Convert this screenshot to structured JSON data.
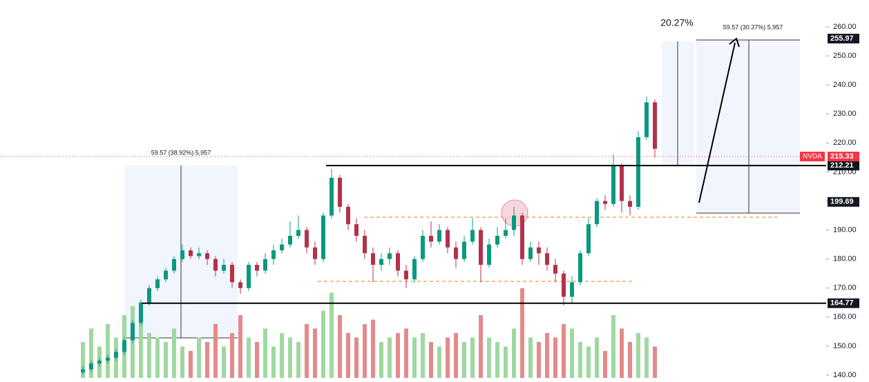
{
  "chart_data": {
    "type": "candlestick",
    "ylim": [
      140,
      260
    ],
    "yticks": [
      {
        "value": 140,
        "label": "140.00"
      },
      {
        "value": 150,
        "label": "150.00"
      },
      {
        "value": 160,
        "label": "160.00"
      },
      {
        "value": 170,
        "label": "170.00"
      },
      {
        "value": 180,
        "label": "180.00"
      },
      {
        "value": 190,
        "label": "190.00"
      },
      {
        "value": 200,
        "label": "200.00"
      },
      {
        "value": 210,
        "label": "210.00"
      },
      {
        "value": 220,
        "label": "220.00"
      },
      {
        "value": 230,
        "label": "230.00"
      },
      {
        "value": 240,
        "label": "240.00"
      },
      {
        "value": 250,
        "label": "250.00"
      },
      {
        "value": 260,
        "label": "260.00"
      }
    ],
    "up_color": "#089981",
    "down_color": "#b2324a",
    "open": [
      141,
      142,
      144,
      145,
      146,
      148,
      152,
      158,
      165,
      170,
      173,
      176,
      180,
      183,
      181,
      182,
      180,
      176,
      178,
      172,
      170,
      178,
      176,
      180,
      183,
      185,
      188,
      190,
      184,
      180,
      195,
      208,
      198,
      192,
      188,
      182,
      178,
      180,
      182,
      176,
      173,
      180,
      188,
      186,
      190,
      184,
      180,
      186,
      190,
      178,
      185,
      188,
      190,
      195,
      180,
      184,
      182,
      178,
      175,
      167,
      172,
      182,
      192,
      200,
      199,
      212,
      200,
      198,
      222,
      234
    ],
    "high": [
      143,
      145,
      146,
      147,
      149,
      153,
      159,
      166,
      171,
      174,
      177,
      181,
      185,
      184,
      184,
      183,
      181,
      180,
      179,
      173,
      179,
      179,
      182,
      185,
      187,
      193,
      195,
      191,
      186,
      196,
      211,
      209,
      199,
      194,
      190,
      184,
      182,
      184,
      183,
      178,
      181,
      190,
      193,
      192,
      191,
      186,
      188,
      194,
      191,
      187,
      191,
      194,
      198,
      196,
      186,
      186,
      184,
      180,
      176,
      174,
      183,
      194,
      201,
      202,
      216,
      213,
      202,
      224,
      236,
      235
    ],
    "low": [
      140,
      141,
      143,
      144,
      145,
      147,
      151,
      157,
      164,
      169,
      172,
      175,
      179,
      180,
      180,
      178,
      174,
      175,
      170,
      168,
      169,
      174,
      175,
      178,
      182,
      184,
      187,
      182,
      178,
      179,
      194,
      196,
      190,
      186,
      180,
      172,
      176,
      178,
      174,
      170,
      172,
      179,
      184,
      185,
      182,
      177,
      179,
      185,
      172,
      177,
      184,
      187,
      188,
      178,
      179,
      178,
      176,
      172,
      164,
      165,
      171,
      181,
      191,
      197,
      198,
      196,
      195,
      197,
      221,
      215
    ],
    "close": [
      142,
      144,
      145,
      146,
      148,
      152,
      158,
      165,
      170,
      173,
      176,
      180,
      183,
      181,
      182,
      180,
      176,
      178,
      172,
      170,
      178,
      176,
      180,
      183,
      185,
      188,
      190,
      184,
      180,
      195,
      208,
      198,
      192,
      188,
      182,
      178,
      180,
      182,
      176,
      173,
      180,
      188,
      186,
      190,
      184,
      180,
      186,
      190,
      178,
      185,
      188,
      190,
      195,
      180,
      184,
      182,
      178,
      175,
      167,
      172,
      182,
      192,
      200,
      199,
      212,
      200,
      198,
      222,
      234,
      218
    ],
    "volume": [
      40,
      55,
      35,
      60,
      45,
      70,
      80,
      65,
      50,
      45,
      40,
      55,
      35,
      30,
      45,
      40,
      60,
      35,
      50,
      70,
      45,
      40,
      55,
      35,
      50,
      45,
      40,
      60,
      55,
      75,
      95,
      70,
      50,
      45,
      60,
      65,
      40,
      45,
      50,
      55,
      45,
      50,
      40,
      35,
      45,
      50,
      40,
      45,
      70,
      45,
      40,
      35,
      55,
      100,
      45,
      40,
      50,
      45,
      60,
      55,
      40,
      35,
      45,
      30,
      70,
      55,
      40,
      50,
      45,
      35
    ],
    "last": {
      "ticker": "NVDA",
      "value": 215.33,
      "label": "215.33"
    },
    "levels": [
      {
        "value": 255.97,
        "label": "255.97"
      },
      {
        "value": 212.21,
        "label": "212.21"
      },
      {
        "value": 199.69,
        "label": "199.69"
      },
      {
        "value": 164.77,
        "label": "164.77"
      }
    ],
    "annotations": [
      "20.27%",
      "59.57 (30.37%) 5,957",
      "59.57 (38.92%) 5,957"
    ]
  }
}
